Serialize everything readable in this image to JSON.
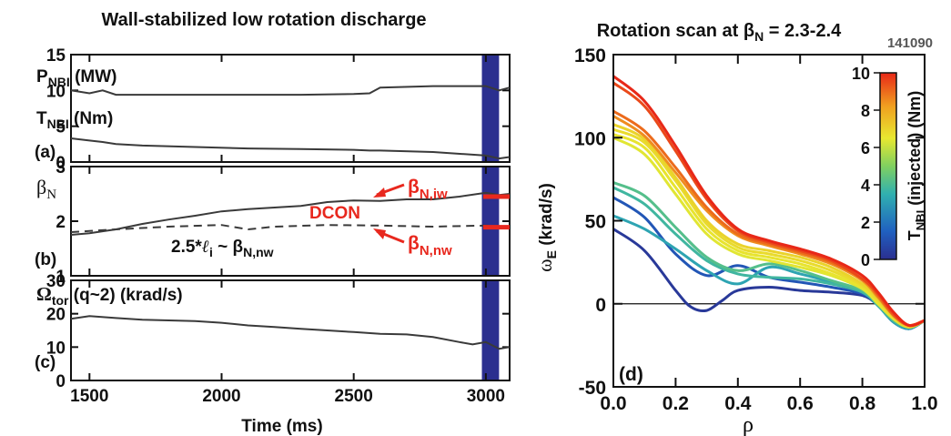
{
  "left_title": "Wall-stabilized low rotation discharge",
  "shot_label": "141090",
  "x_axis_label": "Time (ms)",
  "panel_a": {
    "letter": "(a)",
    "label_pnbi": "P",
    "label_pnbi_sub": "NBI",
    "label_pnbi_unit": " (MW)",
    "label_tnbi": "T",
    "label_tnbi_sub": "NBI",
    "label_tnbi_unit": " (Nm)"
  },
  "panel_b": {
    "letter": "(b)",
    "label_beta": "β",
    "label_beta_sub": "N",
    "dcon": "DCON",
    "beta_iw": "β",
    "beta_iw_sub": "N,iw",
    "beta_nw": "β",
    "beta_nw_sub": "N,nw",
    "li_expr_pre": "2.5*",
    "li_expr_l": "ℓ",
    "li_expr_i": "i",
    "li_expr_mid": " ~ β",
    "li_expr_sub": "N,nw"
  },
  "panel_c": {
    "letter": "(c)",
    "label_omega": "Ω",
    "label_omega_sub": "tor",
    "label_omega_rest": " (q~2) (krad/s)"
  },
  "right_title_pre": "Rotation scan at β",
  "right_title_sub": "N",
  "right_title_post": " = 2.3-2.4",
  "right_ylabel": "ω",
  "right_ylabel_sub": "E",
  "right_ylabel_rest": " (krad/s)",
  "right_xlabel": "ρ",
  "panel_d_letter": "(d)",
  "colorbar_label": "T",
  "colorbar_label_sub": "NBI",
  "colorbar_label_rest": " (injected) (Nm)",
  "colorbar_ticks": [
    "0",
    "2",
    "4",
    "6",
    "8",
    "10"
  ],
  "colors": {
    "red_annotation": "#e8281e",
    "shaded_band": "#2b2f8f",
    "trace": "#3a3a3a"
  },
  "chart_data": [
    {
      "type": "line",
      "panel": "a",
      "xlim": [
        1430,
        3090
      ],
      "ylim": [
        0,
        15
      ],
      "x_ticks": [
        1500,
        2000,
        2500,
        3000
      ],
      "y_ticks": [
        0,
        5,
        10,
        15
      ],
      "series": [
        {
          "name": "P_NBI (MW)",
          "x": [
            1430,
            1500,
            1550,
            1600,
            1700,
            1900,
            2100,
            2300,
            2500,
            2560,
            2600,
            2800,
            3000,
            3050,
            3090
          ],
          "y": [
            10.0,
            9.6,
            10.0,
            9.4,
            9.4,
            9.4,
            9.4,
            9.4,
            9.5,
            9.6,
            10.4,
            10.6,
            10.6,
            10.0,
            10.4
          ]
        },
        {
          "name": "T_NBI (Nm)",
          "x": [
            1430,
            1500,
            1550,
            1600,
            1700,
            1900,
            2100,
            2300,
            2500,
            2560,
            2600,
            2800,
            3000,
            3050,
            3090
          ],
          "y": [
            3.3,
            3.0,
            2.8,
            2.5,
            2.3,
            2.1,
            1.9,
            1.8,
            1.7,
            1.6,
            1.6,
            1.4,
            0.9,
            0.5,
            0.7
          ]
        }
      ],
      "shaded_band_x": [
        2985,
        3050
      ]
    },
    {
      "type": "line",
      "panel": "b",
      "xlim": [
        1430,
        3090
      ],
      "ylim": [
        1,
        3
      ],
      "x_ticks": [
        1500,
        2000,
        2500,
        3000
      ],
      "y_ticks": [
        1,
        2,
        3
      ],
      "series": [
        {
          "name": "β_N",
          "x": [
            1430,
            1500,
            1600,
            1700,
            1800,
            1900,
            2000,
            2100,
            2200,
            2300,
            2400,
            2500,
            2600,
            2700,
            2800,
            2900,
            3000,
            3050,
            3090
          ],
          "y": [
            1.75,
            1.78,
            1.85,
            1.95,
            2.03,
            2.1,
            2.18,
            2.22,
            2.25,
            2.28,
            2.35,
            2.38,
            2.37,
            2.4,
            2.4,
            2.45,
            2.52,
            2.48,
            2.5
          ],
          "style": "solid"
        },
        {
          "name": "2.5*ℓ_i ~ β_N,nw",
          "x": [
            1430,
            1600,
            1800,
            2000,
            2100,
            2200,
            2400,
            2600,
            2800,
            3000,
            3090
          ],
          "y": [
            1.8,
            1.85,
            1.9,
            1.93,
            1.85,
            1.9,
            1.93,
            1.92,
            1.9,
            1.92,
            1.9
          ],
          "style": "dashed"
        }
      ],
      "markers": [
        {
          "name": "β_N,iw",
          "y": 2.45,
          "x_range": [
            2990,
            3090
          ]
        },
        {
          "name": "β_N,nw",
          "y": 1.89,
          "x_range": [
            2990,
            3090
          ]
        }
      ],
      "shaded_band_x": [
        2985,
        3050
      ]
    },
    {
      "type": "line",
      "panel": "c",
      "xlim": [
        1430,
        3090
      ],
      "ylim": [
        0,
        30
      ],
      "x_ticks": [
        1500,
        2000,
        2500,
        3000
      ],
      "y_ticks": [
        0,
        10,
        20,
        30
      ],
      "series": [
        {
          "name": "Ω_tor (q~2) (krad/s)",
          "x": [
            1430,
            1500,
            1600,
            1700,
            1800,
            1900,
            2000,
            2100,
            2200,
            2300,
            2400,
            2500,
            2600,
            2700,
            2800,
            2900,
            2950,
            3000,
            3050,
            3090
          ],
          "y": [
            18.5,
            19.3,
            18.7,
            18.2,
            18.0,
            17.8,
            17.3,
            16.5,
            16.0,
            15.5,
            15.0,
            14.5,
            14.0,
            13.8,
            13.0,
            11.5,
            10.8,
            11.5,
            9.5,
            10.0
          ]
        }
      ],
      "shaded_band_x": [
        2985,
        3050
      ]
    },
    {
      "type": "line",
      "panel": "d",
      "xlim": [
        0,
        1.0
      ],
      "ylim": [
        -50,
        150
      ],
      "x_ticks": [
        0.0,
        0.2,
        0.4,
        0.6,
        0.8,
        1.0
      ],
      "y_ticks": [
        -50,
        0,
        50,
        100,
        150
      ],
      "zero_line": true,
      "colorbar": {
        "label": "T_NBI (injected) (Nm)",
        "range": [
          0,
          10
        ],
        "ticks": [
          0,
          2,
          4,
          6,
          8,
          10
        ]
      },
      "series": [
        {
          "t": 10.0,
          "x": [
            0.0,
            0.1,
            0.2,
            0.3,
            0.4,
            0.5,
            0.6,
            0.7,
            0.8,
            0.85,
            0.9,
            0.95,
            1.0
          ],
          "y": [
            137,
            122,
            95,
            65,
            45,
            38,
            33,
            27,
            17,
            7,
            -5,
            -13,
            -10
          ]
        },
        {
          "t": 9.5,
          "x": [
            0.0,
            0.1,
            0.2,
            0.3,
            0.4,
            0.5,
            0.6,
            0.7,
            0.8,
            0.85,
            0.9,
            0.95,
            1.0
          ],
          "y": [
            133,
            119,
            92,
            63,
            44,
            37,
            32,
            26,
            15,
            6,
            -6,
            -13,
            -10
          ]
        },
        {
          "t": 9.0,
          "x": [
            0.0,
            0.1,
            0.2,
            0.3,
            0.4,
            0.5,
            0.6,
            0.7,
            0.8,
            0.85,
            0.9,
            0.95,
            1.0
          ],
          "y": [
            116,
            104,
            82,
            58,
            42,
            36,
            31,
            25,
            15,
            5,
            -7,
            -13,
            -10
          ]
        },
        {
          "t": 8.5,
          "x": [
            0.0,
            0.1,
            0.2,
            0.3,
            0.4,
            0.5,
            0.6,
            0.7,
            0.8,
            0.85,
            0.9,
            0.95,
            1.0
          ],
          "y": [
            113,
            101,
            79,
            56,
            41,
            35,
            30,
            24,
            14,
            4,
            -7,
            -13,
            -10
          ]
        },
        {
          "t": 7.0,
          "x": [
            0.0,
            0.1,
            0.2,
            0.3,
            0.4,
            0.5,
            0.6,
            0.7,
            0.8,
            0.85,
            0.9,
            0.95,
            1.0
          ],
          "y": [
            108,
            99,
            76,
            50,
            36,
            32,
            28,
            22,
            12,
            3,
            -8,
            -14,
            -10
          ]
        },
        {
          "t": 6.8,
          "x": [
            0.0,
            0.1,
            0.2,
            0.3,
            0.4,
            0.5,
            0.6,
            0.7,
            0.8,
            0.85,
            0.9,
            0.95,
            1.0
          ],
          "y": [
            105,
            97,
            74,
            48,
            34,
            30,
            26,
            20,
            11,
            2,
            -8,
            -14,
            -10
          ]
        },
        {
          "t": 6.6,
          "x": [
            0.0,
            0.1,
            0.2,
            0.3,
            0.4,
            0.5,
            0.6,
            0.7,
            0.8,
            0.85,
            0.9,
            0.95,
            1.0
          ],
          "y": [
            102,
            94,
            70,
            45,
            32,
            28,
            24,
            18,
            10,
            1,
            -9,
            -14,
            -10
          ]
        },
        {
          "t": 6.4,
          "x": [
            0.0,
            0.1,
            0.2,
            0.3,
            0.4,
            0.5,
            0.6,
            0.7,
            0.8,
            0.85,
            0.9,
            0.95,
            1.0
          ],
          "y": [
            100,
            90,
            66,
            42,
            30,
            26,
            22,
            17,
            9,
            0,
            -9,
            -14,
            -10
          ]
        },
        {
          "t": 4.2,
          "x": [
            0.0,
            0.1,
            0.2,
            0.3,
            0.4,
            0.5,
            0.6,
            0.7,
            0.8,
            0.85,
            0.9,
            0.95,
            1.0
          ],
          "y": [
            73,
            65,
            46,
            28,
            20,
            24,
            20,
            14,
            8,
            0,
            -10,
            -14,
            -10
          ]
        },
        {
          "t": 3.8,
          "x": [
            0.0,
            0.1,
            0.2,
            0.3,
            0.4,
            0.5,
            0.6,
            0.7,
            0.8,
            0.85,
            0.9,
            0.95,
            1.0
          ],
          "y": [
            70,
            60,
            42,
            26,
            18,
            16,
            15,
            12,
            7,
            -1,
            -10,
            -14,
            -10
          ]
        },
        {
          "t": 3.2,
          "x": [
            0.0,
            0.1,
            0.2,
            0.3,
            0.4,
            0.5,
            0.6,
            0.7,
            0.8,
            0.85,
            0.9,
            0.95,
            1.0
          ],
          "y": [
            53,
            45,
            33,
            20,
            12,
            22,
            18,
            13,
            7,
            -1,
            -11,
            -15,
            -10
          ]
        },
        {
          "t": 1.2,
          "x": [
            0.0,
            0.1,
            0.2,
            0.3,
            0.4,
            0.5,
            0.6,
            0.7,
            0.8,
            0.85,
            0.9,
            0.95,
            1.0
          ],
          "y": [
            64,
            52,
            30,
            17,
            23,
            16,
            13,
            10,
            6,
            -1,
            -11,
            -15,
            -10
          ]
        },
        {
          "t": 0.3,
          "x": [
            0.0,
            0.1,
            0.2,
            0.25,
            0.3,
            0.35,
            0.4,
            0.5,
            0.6,
            0.7,
            0.8,
            0.85,
            0.9,
            0.95,
            1.0
          ],
          "y": [
            45,
            32,
            8,
            -2,
            -4,
            2,
            8,
            10,
            8,
            7,
            5,
            -1,
            -11,
            -15,
            -10
          ]
        }
      ]
    }
  ]
}
